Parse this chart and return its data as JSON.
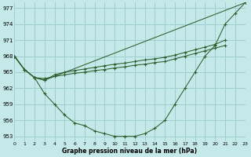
{
  "xlabel": "Graphe pression niveau de la mer (hPa)",
  "xlim": [
    0,
    23
  ],
  "ylim": [
    952,
    978
  ],
  "yticks": [
    953,
    956,
    959,
    962,
    965,
    968,
    971,
    974,
    977
  ],
  "xticks": [
    0,
    1,
    2,
    3,
    4,
    5,
    6,
    7,
    8,
    9,
    10,
    11,
    12,
    13,
    14,
    15,
    16,
    17,
    18,
    19,
    20,
    21,
    22,
    23
  ],
  "background_color": "#c5e8e8",
  "grid_color": "#9ecece",
  "line_color": "#2d5f2d",
  "line_bottom": {
    "x": [
      0,
      1,
      2,
      3,
      4,
      5,
      6,
      7,
      8,
      9,
      10,
      11,
      12,
      13,
      14,
      15,
      16,
      17,
      18,
      19,
      20,
      21,
      22,
      23
    ],
    "y": [
      968,
      965.5,
      964,
      961,
      959,
      957,
      955.5,
      955,
      954,
      953.5,
      953,
      953,
      953,
      953.5,
      954.5,
      956,
      959,
      962,
      965,
      968,
      970,
      974,
      976,
      978
    ]
  },
  "line_top": {
    "x": [
      0,
      1,
      2,
      3,
      23
    ],
    "y": [
      968,
      965.5,
      964,
      963.5,
      978
    ]
  },
  "line_mid1": {
    "x": [
      0,
      1,
      2,
      3,
      4,
      5,
      6,
      7,
      8,
      9,
      10,
      11,
      12,
      13,
      14,
      15,
      16,
      17,
      18,
      19,
      20,
      21
    ],
    "y": [
      968,
      965.5,
      964,
      963.8,
      964.2,
      964.5,
      964.8,
      965.0,
      965.3,
      965.5,
      965.8,
      966.0,
      966.3,
      966.5,
      966.8,
      967.0,
      967.5,
      968.0,
      968.5,
      969.0,
      969.5,
      970.0
    ]
  },
  "line_mid2": {
    "x": [
      0,
      1,
      2,
      3,
      4,
      5,
      6,
      7,
      8,
      9,
      10,
      11,
      12,
      13,
      14,
      15,
      16,
      17,
      18,
      19,
      20,
      21
    ],
    "y": [
      968,
      965.5,
      964,
      963.5,
      964.5,
      965.0,
      965.3,
      965.6,
      965.9,
      966.2,
      966.5,
      966.7,
      967.0,
      967.3,
      967.5,
      967.8,
      968.2,
      968.7,
      969.2,
      969.7,
      970.2,
      971.0
    ]
  }
}
